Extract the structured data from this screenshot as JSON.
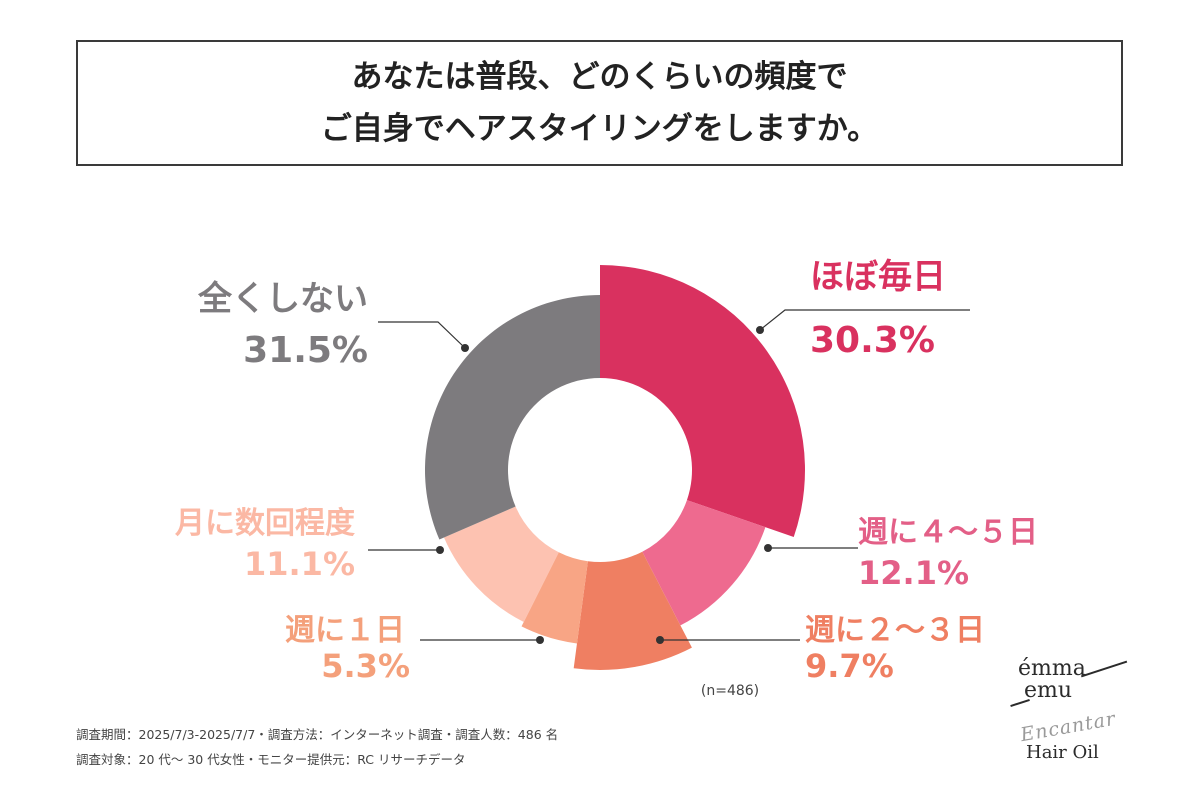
{
  "title": {
    "line1": "あなたは普段、どのくらいの頻度で",
    "line2": "ご自身でヘアスタイリングをしますか。"
  },
  "chart_data": {
    "type": "pie",
    "donut": true,
    "categories": [
      "ほぼ毎日",
      "週に４～５日",
      "週に２～３日",
      "週に１日",
      "月に数回程度",
      "全くしない"
    ],
    "values": [
      30.3,
      12.1,
      9.7,
      5.3,
      11.1,
      31.5
    ],
    "value_labels": [
      "30.3%",
      "12.1%",
      "9.7%",
      "5.3%",
      "11.1%",
      "31.5%"
    ],
    "colors": [
      "#d9315f",
      "#ee6a8f",
      "#ef7f62",
      "#f8a585",
      "#fdc2b1",
      "#7d7b7e"
    ],
    "label_colors": [
      "#d9315f",
      "#e35f87",
      "#ef7f62",
      "#f4a07b",
      "#fbb8a4",
      "#7d7b7e"
    ],
    "n_label": "(n=486)"
  },
  "footnotes": {
    "line1": "調査期間：2025/7/3-2025/7/7・調査方法：インターネット調査・調査人数：486 名",
    "line2": "調査対象：20 代～ 30 代女性・モニター提供元：RC リサーチデータ"
  },
  "logo": {
    "brand1": "émma",
    "brand2": "emu",
    "script": "Encantar",
    "product": "Hair Oil"
  }
}
